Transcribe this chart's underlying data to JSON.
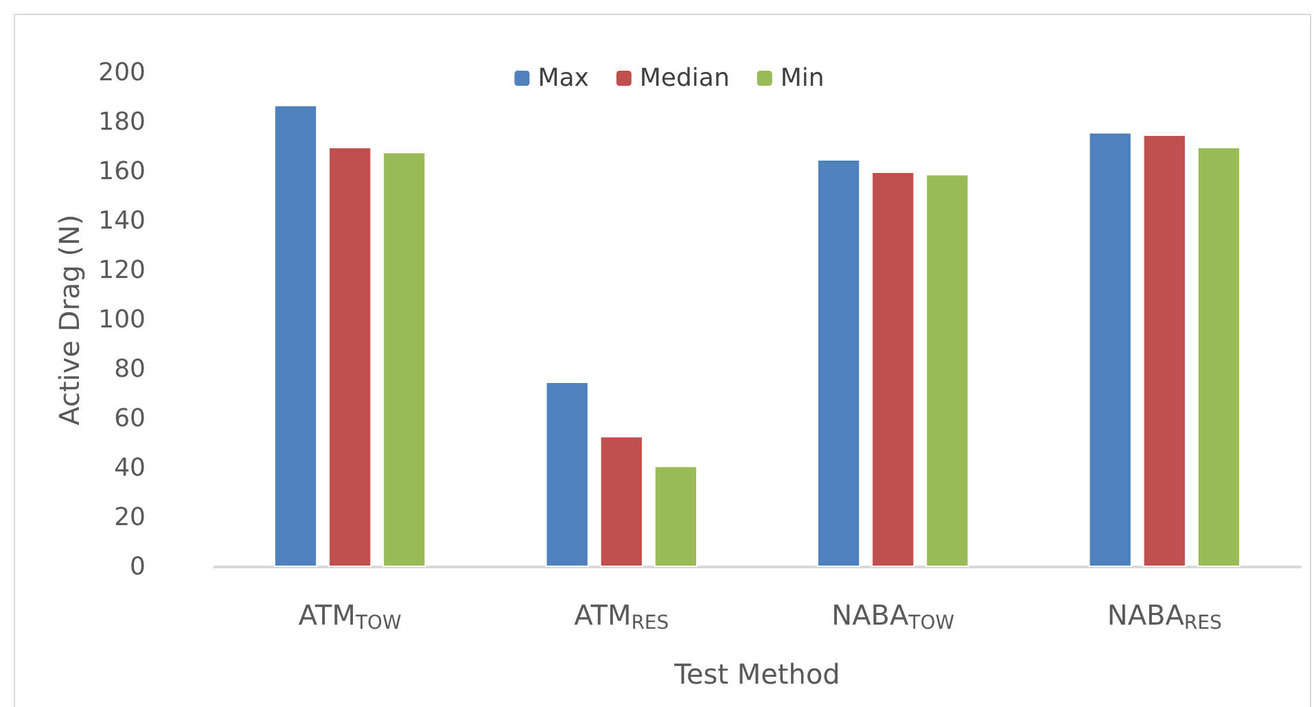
{
  "chart_data": {
    "type": "bar",
    "xlabel": "Test Method",
    "ylabel": "Active Drag (N)",
    "categories": [
      "ATM$_{TOW}$",
      "ATM$_{RES}$",
      "NABA$_{TOW}$",
      "NABA$_{RES}$"
    ],
    "series": [
      {
        "name": "Max",
        "color": "#4f81bd",
        "values": [
          187,
          75,
          165,
          176
        ]
      },
      {
        "name": "Median",
        "color": "#c0504d",
        "values": [
          170,
          53,
          160,
          175
        ]
      },
      {
        "name": "Min",
        "color": "#9bbb59",
        "values": [
          168,
          41,
          159,
          170
        ]
      }
    ],
    "ylim": [
      0,
      200
    ],
    "yticks": [
      0,
      20,
      40,
      60,
      80,
      100,
      120,
      140,
      160,
      180,
      200
    ],
    "grid": false,
    "legend": "top"
  }
}
